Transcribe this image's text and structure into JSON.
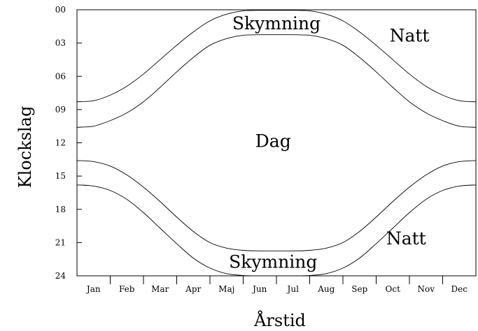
{
  "chart_data": {
    "type": "line",
    "title": "",
    "xlabel": "Årstid",
    "ylabel": "Klockslag",
    "categories": [
      "Jan",
      "Feb",
      "Mar",
      "Apr",
      "Maj",
      "Jun",
      "Jul",
      "Aug",
      "Sep",
      "Oct",
      "Nov",
      "Dec"
    ],
    "y_ticks": [
      "00",
      "03",
      "06",
      "09",
      "12",
      "15",
      "18",
      "21",
      "24"
    ],
    "ylim": [
      0,
      24
    ],
    "y_inverted": true,
    "grid": false,
    "series": [
      {
        "x": [
          0,
          0.5,
          1,
          1.5,
          2,
          2.5,
          3,
          3.5,
          4,
          4.5,
          5,
          5.5,
          6,
          6.5,
          7,
          7.5,
          8,
          8.5,
          9,
          9.5,
          10,
          10.5,
          11,
          11.5,
          12
        ],
        "y": [
          8.3,
          8.2,
          7.7,
          6.9,
          5.8,
          4.5,
          3.2,
          2.0,
          1.0,
          0.4,
          0.1,
          0.05,
          0.05,
          0.05,
          0.1,
          0.4,
          1.0,
          2.0,
          3.2,
          4.5,
          5.8,
          6.9,
          7.7,
          8.2,
          8.3
        ]
      },
      {
        "x": [
          0,
          0.5,
          1,
          1.5,
          2,
          2.5,
          3,
          3.5,
          4,
          4.5,
          5,
          5.5,
          6,
          6.5,
          7,
          7.5,
          8,
          8.5,
          9,
          9.5,
          10,
          10.5,
          11,
          11.5,
          12
        ],
        "y": [
          10.6,
          10.5,
          10.0,
          9.3,
          8.3,
          7.0,
          5.6,
          4.3,
          3.2,
          2.6,
          2.3,
          2.25,
          2.25,
          2.25,
          2.3,
          2.6,
          3.2,
          4.3,
          5.6,
          7.0,
          8.3,
          9.3,
          10.0,
          10.5,
          10.6
        ]
      },
      {
        "x": [
          0,
          0.5,
          1,
          1.5,
          2,
          2.5,
          3,
          3.5,
          4,
          4.5,
          5,
          5.5,
          6,
          6.5,
          7,
          7.5,
          8,
          8.5,
          9,
          9.5,
          10,
          10.5,
          11,
          11.5,
          12
        ],
        "y": [
          13.6,
          13.7,
          14.1,
          14.9,
          16.0,
          17.3,
          18.7,
          20.0,
          21.0,
          21.5,
          21.7,
          21.75,
          21.75,
          21.75,
          21.7,
          21.5,
          21.0,
          20.0,
          18.7,
          17.3,
          16.0,
          14.9,
          14.1,
          13.7,
          13.6
        ]
      },
      {
        "x": [
          0,
          0.5,
          1,
          1.5,
          2,
          2.5,
          3,
          3.5,
          4,
          4.5,
          5,
          5.5,
          6,
          6.5,
          7,
          7.5,
          8,
          8.5,
          9,
          9.5,
          10,
          10.5,
          11,
          11.5,
          12
        ],
        "y": [
          15.8,
          15.9,
          16.3,
          17.1,
          18.3,
          19.7,
          21.1,
          22.4,
          23.3,
          23.8,
          23.97,
          24.0,
          24.0,
          24.0,
          23.97,
          23.8,
          23.3,
          22.4,
          21.1,
          19.7,
          18.3,
          17.1,
          16.3,
          15.9,
          15.8
        ]
      }
    ],
    "annotations": [
      {
        "text": "Skymning",
        "x": 6.0,
        "y": 1.2
      },
      {
        "text": "Natt",
        "x": 10.0,
        "y": 2.3
      },
      {
        "text": "Dag",
        "x": 5.9,
        "y": 11.8
      },
      {
        "text": "Natt",
        "x": 9.9,
        "y": 20.6
      },
      {
        "text": "Skymning",
        "x": 5.9,
        "y": 22.7
      }
    ]
  }
}
